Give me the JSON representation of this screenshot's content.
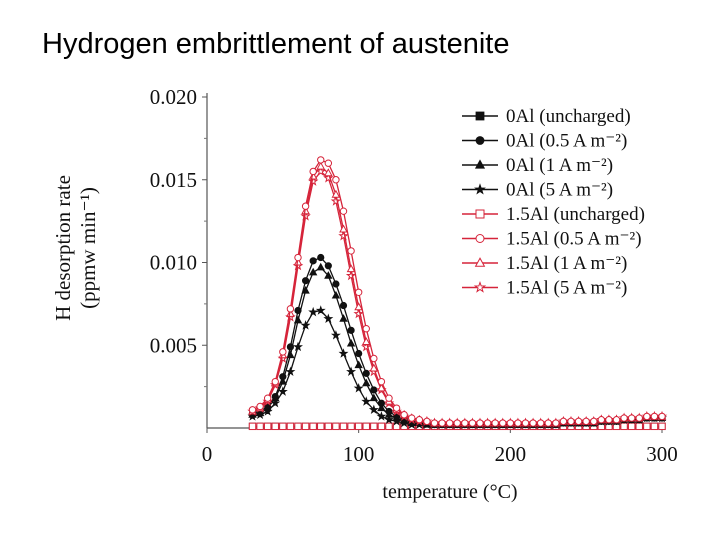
{
  "slide": {
    "title": "Hydrogen embrittlement of austenite"
  },
  "chart_data": {
    "type": "line",
    "xlabel": "temperature (°C)",
    "ylabel_line1": "H desorption rate",
    "ylabel_line2": "(ppmw min⁻¹)",
    "xlim": [
      0,
      300
    ],
    "ylim": [
      0,
      0.02
    ],
    "xticks": [
      {
        "value": 0,
        "label": "0"
      },
      {
        "value": 100,
        "label": "100"
      },
      {
        "value": 200,
        "label": "200"
      },
      {
        "value": 300,
        "label": "300"
      }
    ],
    "yticks": [
      {
        "value": 0.005,
        "label": "0.005"
      },
      {
        "value": 0.01,
        "label": "0.010"
      },
      {
        "value": 0.015,
        "label": "0.015"
      },
      {
        "value": 0.02,
        "label": "0.020"
      }
    ],
    "grid": false,
    "legend_position": "top-right",
    "x": [
      30,
      35,
      40,
      45,
      50,
      55,
      60,
      65,
      70,
      75,
      80,
      85,
      90,
      95,
      100,
      105,
      110,
      115,
      120,
      125,
      130,
      135,
      140,
      145,
      150,
      155,
      160,
      165,
      170,
      175,
      180,
      185,
      190,
      195,
      200,
      205,
      210,
      215,
      220,
      225,
      230,
      235,
      240,
      245,
      250,
      255,
      260,
      265,
      270,
      275,
      280,
      285,
      290,
      295,
      300
    ],
    "series": [
      {
        "name": "0Al (uncharged)",
        "color": "#111111",
        "marker": "square",
        "values": [
          0.0001,
          0.0001,
          0.0001,
          0.0001,
          0.0001,
          0.0001,
          0.0001,
          0.0001,
          0.0001,
          0.0001,
          0.0001,
          0.0001,
          0.0001,
          0.0001,
          0.0001,
          0.0001,
          0.0001,
          0.0001,
          0.0001,
          0.0001,
          0.0001,
          0.0001,
          0.0001,
          0.0001,
          0.0001,
          0.0001,
          0.0001,
          0.0001,
          0.0001,
          0.0001,
          0.0001,
          0.0001,
          0.0001,
          0.0001,
          0.0001,
          0.0001,
          0.0001,
          0.0001,
          0.0001,
          0.0001,
          0.0001,
          0.0001,
          0.0001,
          0.0001,
          0.0001,
          0.0001,
          0.0001,
          0.0001,
          0.0001,
          0.0001,
          0.0001,
          0.0001,
          0.0001,
          0.0001,
          0.0001
        ]
      },
      {
        "name": "0Al (0.5 A m⁻²)",
        "color": "#111111",
        "marker": "circle",
        "values": [
          0.0009,
          0.001,
          0.0013,
          0.0019,
          0.0031,
          0.0049,
          0.0071,
          0.0089,
          0.0101,
          0.0103,
          0.0098,
          0.0087,
          0.0074,
          0.0059,
          0.0045,
          0.0033,
          0.0023,
          0.0015,
          0.001,
          0.0007,
          0.0005,
          0.0004,
          0.0003,
          0.0003,
          0.0002,
          0.0002,
          0.0002,
          0.0002,
          0.0002,
          0.0002,
          0.0002,
          0.0002,
          0.0002,
          0.0002,
          0.0002,
          0.0002,
          0.0002,
          0.0002,
          0.0002,
          0.0002,
          0.0002,
          0.0003,
          0.0003,
          0.0003,
          0.0003,
          0.0003,
          0.0004,
          0.0004,
          0.0004,
          0.0005,
          0.0005,
          0.0005,
          0.0006,
          0.0006,
          0.0006
        ]
      },
      {
        "name": "0Al (1 A m⁻²)",
        "color": "#111111",
        "marker": "triangle",
        "values": [
          0.0008,
          0.0009,
          0.0012,
          0.0018,
          0.0028,
          0.0044,
          0.0065,
          0.0083,
          0.0094,
          0.0097,
          0.0092,
          0.008,
          0.0066,
          0.0051,
          0.0038,
          0.0027,
          0.0018,
          0.0012,
          0.0008,
          0.0006,
          0.0004,
          0.0003,
          0.0003,
          0.0002,
          0.0002,
          0.0002,
          0.0002,
          0.0002,
          0.0002,
          0.0002,
          0.0002,
          0.0002,
          0.0002,
          0.0002,
          0.0002,
          0.0002,
          0.0002,
          0.0002,
          0.0002,
          0.0002,
          0.0002,
          0.0003,
          0.0003,
          0.0003,
          0.0003,
          0.0003,
          0.0004,
          0.0004,
          0.0004,
          0.0005,
          0.0005,
          0.0005,
          0.0006,
          0.0006,
          0.0006
        ]
      },
      {
        "name": "0Al (5 A m⁻²)",
        "color": "#111111",
        "marker": "star",
        "values": [
          0.0007,
          0.0008,
          0.001,
          0.0015,
          0.0022,
          0.0034,
          0.0049,
          0.0062,
          0.007,
          0.0071,
          0.0066,
          0.0056,
          0.0045,
          0.0034,
          0.0024,
          0.0016,
          0.0011,
          0.0007,
          0.0005,
          0.0004,
          0.0003,
          0.0002,
          0.0002,
          0.0002,
          0.0002,
          0.0002,
          0.0002,
          0.0002,
          0.0002,
          0.0002,
          0.0002,
          0.0002,
          0.0002,
          0.0002,
          0.0002,
          0.0002,
          0.0002,
          0.0002,
          0.0002,
          0.0002,
          0.0002,
          0.0003,
          0.0003,
          0.0003,
          0.0003,
          0.0003,
          0.0004,
          0.0004,
          0.0004,
          0.0005,
          0.0005,
          0.0005,
          0.0006,
          0.0006,
          0.0006
        ]
      },
      {
        "name": "1.5Al (uncharged)",
        "color": "#d6243a",
        "marker": "square",
        "values": [
          0.0001,
          0.0001,
          0.0001,
          0.0001,
          0.0001,
          0.0001,
          0.0001,
          0.0001,
          0.0001,
          0.0001,
          0.0001,
          0.0001,
          0.0001,
          0.0001,
          0.0001,
          0.0001,
          0.0001,
          0.0001,
          0.0001,
          0.0001,
          0.0001,
          0.0001,
          0.0001,
          0.0001,
          0.0001,
          0.0001,
          0.0001,
          0.0001,
          0.0001,
          0.0001,
          0.0001,
          0.0001,
          0.0001,
          0.0001,
          0.0001,
          0.0001,
          0.0001,
          0.0001,
          0.0001,
          0.0001,
          0.0001,
          0.0001,
          0.0001,
          0.0001,
          0.0001,
          0.0001,
          0.0001,
          0.0001,
          0.0001,
          0.0001,
          0.0001,
          0.0001,
          0.0001,
          0.0001,
          0.0001
        ]
      },
      {
        "name": "1.5Al (0.5 A m⁻²)",
        "color": "#d6243a",
        "marker": "circle",
        "values": [
          0.0011,
          0.0013,
          0.0018,
          0.0028,
          0.0046,
          0.0072,
          0.0103,
          0.0134,
          0.0155,
          0.0162,
          0.016,
          0.015,
          0.0131,
          0.0107,
          0.0082,
          0.006,
          0.0042,
          0.0028,
          0.0018,
          0.0012,
          0.0008,
          0.0006,
          0.0005,
          0.0004,
          0.0003,
          0.0003,
          0.0003,
          0.0003,
          0.0003,
          0.0003,
          0.0003,
          0.0003,
          0.0003,
          0.0003,
          0.0003,
          0.0003,
          0.0003,
          0.0003,
          0.0003,
          0.0003,
          0.0003,
          0.0004,
          0.0004,
          0.0004,
          0.0004,
          0.0004,
          0.0005,
          0.0005,
          0.0005,
          0.0006,
          0.0006,
          0.0006,
          0.0007,
          0.0007,
          0.0007
        ]
      },
      {
        "name": "1.5Al (1 A m⁻²)",
        "color": "#d6243a",
        "marker": "triangle",
        "values": [
          0.001,
          0.0012,
          0.0017,
          0.0027,
          0.0044,
          0.0069,
          0.01,
          0.0131,
          0.0152,
          0.0158,
          0.0154,
          0.0141,
          0.012,
          0.0096,
          0.0073,
          0.0052,
          0.0036,
          0.0024,
          0.0016,
          0.0011,
          0.0008,
          0.0006,
          0.0005,
          0.0004,
          0.0003,
          0.0003,
          0.0003,
          0.0003,
          0.0003,
          0.0003,
          0.0003,
          0.0003,
          0.0003,
          0.0003,
          0.0003,
          0.0003,
          0.0003,
          0.0003,
          0.0003,
          0.0003,
          0.0003,
          0.0004,
          0.0004,
          0.0004,
          0.0004,
          0.0004,
          0.0005,
          0.0005,
          0.0005,
          0.0006,
          0.0006,
          0.0006,
          0.0007,
          0.0007,
          0.0007
        ]
      },
      {
        "name": "1.5Al (5 A m⁻²)",
        "color": "#d6243a",
        "marker": "star",
        "values": [
          0.001,
          0.0012,
          0.0016,
          0.0026,
          0.0042,
          0.0067,
          0.0098,
          0.0128,
          0.0149,
          0.0155,
          0.0151,
          0.0137,
          0.0116,
          0.0092,
          0.0069,
          0.0049,
          0.0034,
          0.0023,
          0.0015,
          0.001,
          0.0007,
          0.0005,
          0.0004,
          0.0004,
          0.0003,
          0.0003,
          0.0003,
          0.0003,
          0.0003,
          0.0003,
          0.0003,
          0.0003,
          0.0003,
          0.0003,
          0.0003,
          0.0003,
          0.0003,
          0.0003,
          0.0003,
          0.0003,
          0.0003,
          0.0004,
          0.0004,
          0.0004,
          0.0004,
          0.0004,
          0.0005,
          0.0005,
          0.0005,
          0.0006,
          0.0006,
          0.0006,
          0.0007,
          0.0007,
          0.0007
        ]
      }
    ]
  }
}
